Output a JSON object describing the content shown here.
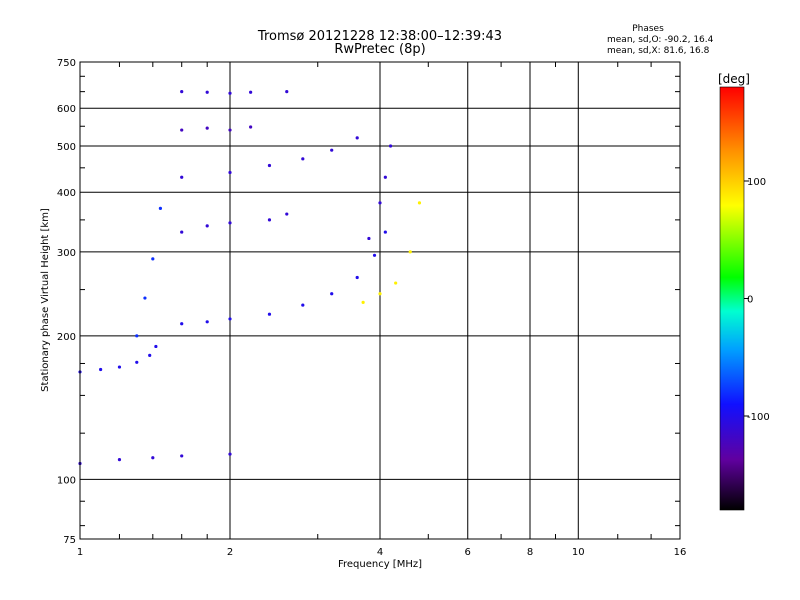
{
  "chart_data": {
    "type": "scatter",
    "title": "Tromsø 20121228 12:38:00–12:39:43",
    "subtitle": "RwPretec (8p)",
    "xlabel": "Frequency [MHz]",
    "ylabel": "Stationary phase Virtual Height [km]",
    "xscale": "log",
    "yscale": "log",
    "xlim": [
      1,
      16
    ],
    "ylim": [
      75,
      750
    ],
    "x_ticks": [
      1,
      2,
      4,
      6,
      8,
      10,
      16
    ],
    "x_tick_labels": [
      "1",
      "2",
      "4",
      "6",
      "8",
      "10",
      "16"
    ],
    "y_ticks": [
      75,
      100,
      200,
      300,
      400,
      500,
      600,
      750
    ],
    "y_tick_labels": [
      "75",
      "100",
      "200",
      "300",
      "400",
      "500",
      "600",
      "750"
    ],
    "grid": true,
    "colorbar": {
      "label": "[deg]",
      "range": [
        -180,
        180
      ],
      "ticks": [
        -100,
        0,
        100
      ],
      "tick_labels": [
        "-100",
        "0",
        "100"
      ]
    },
    "phase_stats": {
      "heading": "Phases",
      "line_o": "mean, sd,O: -90.2, 16.4",
      "line_x": "mean, sd,X:  81.6, 16.8"
    },
    "traces": [
      {
        "name": "",
        "x": [
          1.0,
          1.1,
          1.2,
          1.3,
          1.38,
          1.42
        ],
        "y": [
          168,
          170,
          172,
          176,
          182,
          190
        ],
        "phase": -100
      },
      {
        "name": "",
        "x": [
          1.3,
          1.35,
          1.4,
          1.45
        ],
        "y": [
          200,
          240,
          290,
          370
        ],
        "phase": -80
      },
      {
        "name": "",
        "x": [
          1.6,
          1.8,
          2.0,
          2.4,
          2.8,
          3.2,
          3.6,
          3.9,
          4.1
        ],
        "y": [
          212,
          214,
          217,
          222,
          232,
          245,
          265,
          295,
          330
        ],
        "phase": -100
      },
      {
        "name": "",
        "x": [
          3.8,
          4.0,
          4.1,
          4.2
        ],
        "y": [
          320,
          380,
          430,
          500
        ],
        "phase": -110
      },
      {
        "name": "",
        "x": [
          3.7,
          4.0,
          4.3,
          4.6,
          4.8
        ],
        "y": [
          235,
          245,
          258,
          300,
          380
        ],
        "phase": 85
      },
      {
        "name": "",
        "x": [
          1.0,
          1.2,
          1.4,
          1.6,
          2.0
        ],
        "y": [
          108,
          110,
          111,
          112,
          113
        ],
        "phase": -110
      },
      {
        "name": "",
        "x": [
          1.6,
          2.0,
          2.4,
          2.8,
          3.2,
          3.6
        ],
        "y": [
          430,
          440,
          455,
          470,
          490,
          520
        ],
        "phase": -110
      },
      {
        "name": "",
        "x": [
          1.6,
          1.8,
          2.0,
          2.2,
          2.6
        ],
        "y": [
          650,
          648,
          645,
          648,
          650
        ],
        "phase": -110
      },
      {
        "name": "",
        "x": [
          1.6,
          1.8,
          2.0,
          2.4,
          2.6
        ],
        "y": [
          330,
          340,
          345,
          350,
          360
        ],
        "phase": -110
      },
      {
        "name": "",
        "x": [
          1.6,
          1.8,
          2.0,
          2.2
        ],
        "y": [
          540,
          545,
          540,
          548
        ],
        "phase": -120
      }
    ]
  }
}
